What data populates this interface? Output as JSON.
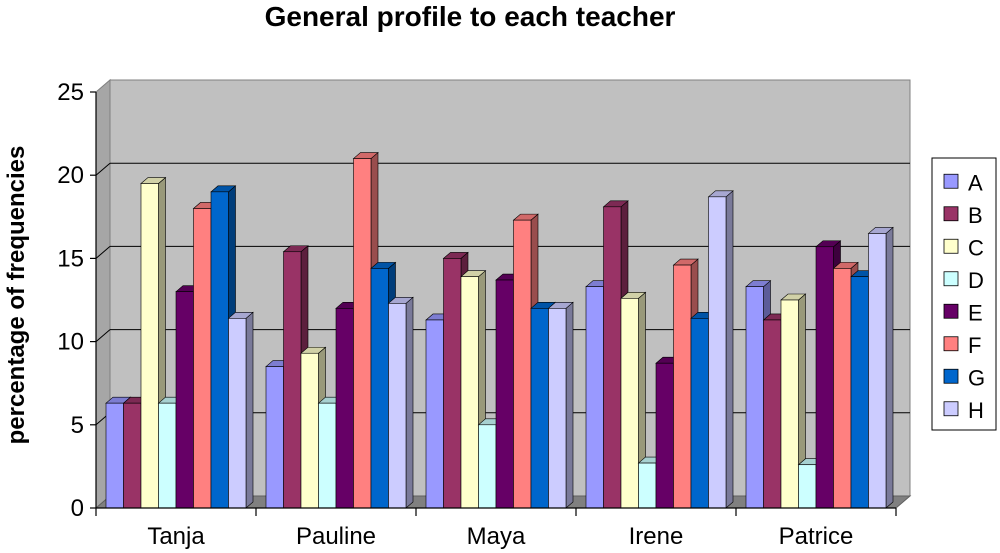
{
  "chart_data": {
    "type": "bar",
    "title": "General profile to each teacher",
    "xlabel": "",
    "ylabel": "percentage of frequencies",
    "ylim": [
      0,
      25
    ],
    "yticks": [
      0,
      5,
      10,
      15,
      20,
      25
    ],
    "grid": true,
    "legend": "right",
    "style": "3d-clustered",
    "categories": [
      "Tanja",
      "Pauline",
      "Maya",
      "Irene",
      "Patrice"
    ],
    "series": [
      {
        "name": "A",
        "color": "#9999ff",
        "values": [
          6.3,
          8.5,
          11.3,
          13.3,
          13.3
        ]
      },
      {
        "name": "B",
        "color": "#993366",
        "values": [
          6.3,
          15.4,
          15.0,
          18.1,
          11.3
        ]
      },
      {
        "name": "C",
        "color": "#ffffcc",
        "values": [
          19.5,
          9.3,
          13.9,
          12.6,
          12.5
        ]
      },
      {
        "name": "D",
        "color": "#ccffff",
        "values": [
          6.3,
          6.3,
          5.0,
          2.7,
          2.6
        ]
      },
      {
        "name": "E",
        "color": "#660066",
        "values": [
          13.0,
          12.0,
          13.7,
          8.7,
          15.7
        ]
      },
      {
        "name": "F",
        "color": "#ff8080",
        "values": [
          18.0,
          21.0,
          17.3,
          14.6,
          14.4
        ]
      },
      {
        "name": "G",
        "color": "#0066cc",
        "values": [
          19.0,
          14.4,
          12.0,
          11.4,
          13.9
        ]
      },
      {
        "name": "H",
        "color": "#ccccff",
        "values": [
          11.4,
          12.3,
          12.0,
          18.7,
          16.5
        ]
      }
    ]
  }
}
